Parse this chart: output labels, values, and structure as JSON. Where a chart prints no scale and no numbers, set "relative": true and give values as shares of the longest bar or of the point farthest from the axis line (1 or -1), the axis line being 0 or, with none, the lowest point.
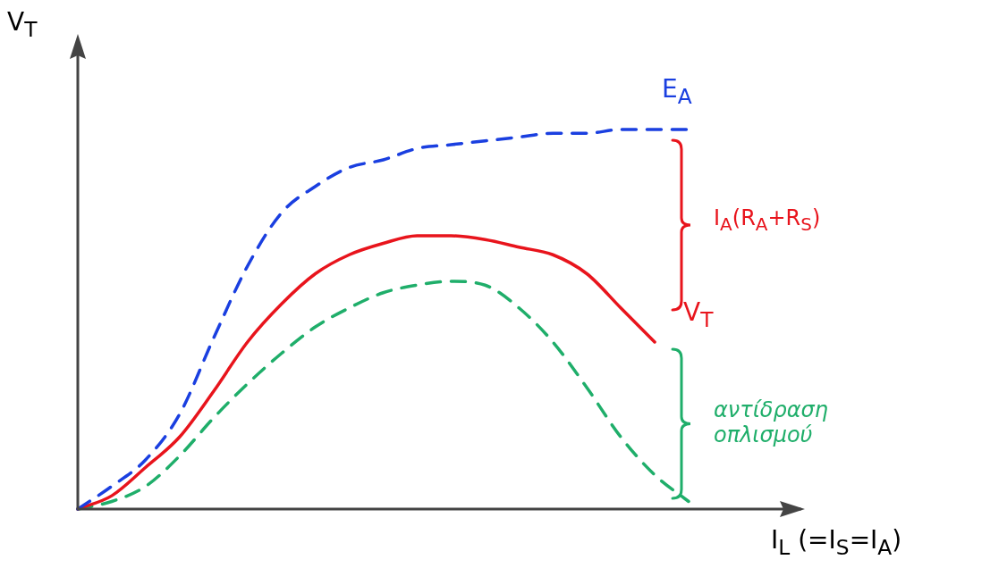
{
  "chart_data": {
    "type": "line",
    "relative": true,
    "xlabel": "I$_{L}$ (=I$_{S}$=I$_{A}$)",
    "ylabel": "V$_{T}$",
    "legend": false,
    "categories": [
      null,
      null,
      null,
      null,
      null,
      null,
      null,
      null,
      null,
      null,
      null,
      null,
      null,
      null,
      null,
      null,
      null,
      null,
      null
    ],
    "series": [
      {
        "name": "E$_{A}$",
        "color": "#1a3fe0",
        "line_style": "dashed",
        "values": [
          0,
          0.06,
          0.13,
          0.25,
          0.45,
          0.64,
          0.78,
          0.85,
          0.9,
          0.92,
          0.95,
          0.96,
          0.97,
          0.98,
          0.99,
          0.99,
          1.0,
          1.0,
          1.0
        ]
      },
      {
        "name": "V$_{T}$",
        "color": "#e8141c",
        "line_style": "solid",
        "values": [
          0,
          0.035,
          0.11,
          0.19,
          0.31,
          0.44,
          0.54,
          0.62,
          0.67,
          0.7,
          0.72,
          0.72,
          0.71,
          0.69,
          0.67,
          0.62,
          0.53,
          0.44,
          null
        ]
      },
      {
        "color": "#1fae6a",
        "line_style": "dashed",
        "values": [
          0,
          0.02,
          0.06,
          0.14,
          0.24,
          0.33,
          0.41,
          0.48,
          0.53,
          0.57,
          0.59,
          0.6,
          0.59,
          0.53,
          0.44,
          0.32,
          0.19,
          0.09,
          0.02
        ]
      }
    ],
    "annotations": [
      "I$_{A}$(R$_{A}$+R$_{S}$)",
      "αντίδραση οπλισμού"
    ]
  }
}
